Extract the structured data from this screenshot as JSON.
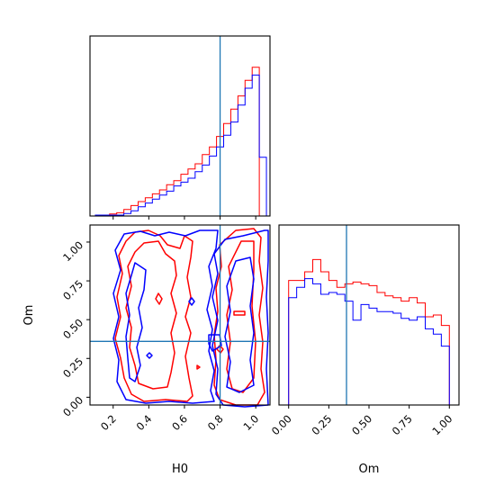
{
  "chart_data": {
    "type": "corner",
    "parameters": [
      "H0",
      "Om"
    ],
    "truths": {
      "H0": 0.8,
      "Om": 0.36
    },
    "colors": {
      "red": "#ff0000",
      "blue": "#0000ff",
      "truth": "#1f77b4"
    },
    "panels": [
      {
        "id": "hist-H0",
        "type": "histogram",
        "xlim": [
          0.07,
          1.08
        ],
        "ylim": [
          0,
          1
        ],
        "bin_edges": [
          0.1,
          0.14,
          0.18,
          0.22,
          0.26,
          0.3,
          0.34,
          0.38,
          0.42,
          0.46,
          0.5,
          0.54,
          0.58,
          0.62,
          0.66,
          0.7,
          0.74,
          0.78,
          0.82,
          0.86,
          0.9,
          0.94,
          0.98,
          1.02,
          1.06
        ],
        "series": [
          {
            "name": "red",
            "values": [
              0.0,
              0.0,
              0.011,
              0.018,
              0.036,
              0.058,
              0.08,
              0.101,
              0.123,
              0.145,
              0.174,
              0.196,
              0.232,
              0.261,
              0.29,
              0.341,
              0.384,
              0.442,
              0.514,
              0.594,
              0.667,
              0.754,
              0.826,
              0.0
            ]
          },
          {
            "name": "blue",
            "values": [
              0.005,
              0.005,
              0.005,
              0.005,
              0.014,
              0.029,
              0.051,
              0.072,
              0.094,
              0.116,
              0.138,
              0.167,
              0.188,
              0.21,
              0.246,
              0.283,
              0.333,
              0.384,
              0.449,
              0.522,
              0.616,
              0.71,
              0.783,
              0.326
            ]
          }
        ]
      },
      {
        "id": "hist-Om",
        "type": "histogram",
        "xlim": [
          -0.06,
          1.06
        ],
        "ylim": [
          0,
          1
        ],
        "xticks": [
          "0.00",
          "0.25",
          "0.50",
          "0.75",
          "1.00"
        ],
        "xticks_values": [
          0,
          0.25,
          0.5,
          0.75,
          1.0
        ],
        "xlabel": "Om",
        "bin_edges": [
          0.0,
          0.05,
          0.1,
          0.15,
          0.2,
          0.25,
          0.3,
          0.35,
          0.4,
          0.45,
          0.5,
          0.55,
          0.6,
          0.65,
          0.7,
          0.75,
          0.8,
          0.85,
          0.9,
          0.95,
          1.0
        ],
        "series": [
          {
            "name": "red",
            "values": [
              0.692,
              0.692,
              0.74,
              0.808,
              0.74,
              0.692,
              0.654,
              0.673,
              0.683,
              0.673,
              0.663,
              0.625,
              0.606,
              0.596,
              0.577,
              0.596,
              0.567,
              0.49,
              0.5,
              0.442
            ]
          },
          {
            "name": "blue",
            "values": [
              0.596,
              0.654,
              0.702,
              0.673,
              0.615,
              0.625,
              0.615,
              0.577,
              0.471,
              0.558,
              0.538,
              0.519,
              0.519,
              0.51,
              0.481,
              0.471,
              0.49,
              0.423,
              0.394,
              0.327
            ]
          }
        ]
      },
      {
        "id": "contour-H0-Om",
        "type": "contour",
        "xlim": [
          0.07,
          1.08
        ],
        "ylim": [
          -0.05,
          1.11
        ],
        "xticks": [
          "0.2",
          "0.4",
          "0.6",
          "0.8",
          "1.0"
        ],
        "xticks_values": [
          0.2,
          0.4,
          0.6,
          0.8,
          1.0
        ],
        "yticks": [
          "0.00",
          "0.25",
          "0.50",
          "0.75",
          "1.00"
        ],
        "yticks_values": [
          0,
          0.25,
          0.5,
          0.75,
          1.0
        ],
        "xlabel": "H0",
        "ylabel": "Om"
      }
    ]
  }
}
